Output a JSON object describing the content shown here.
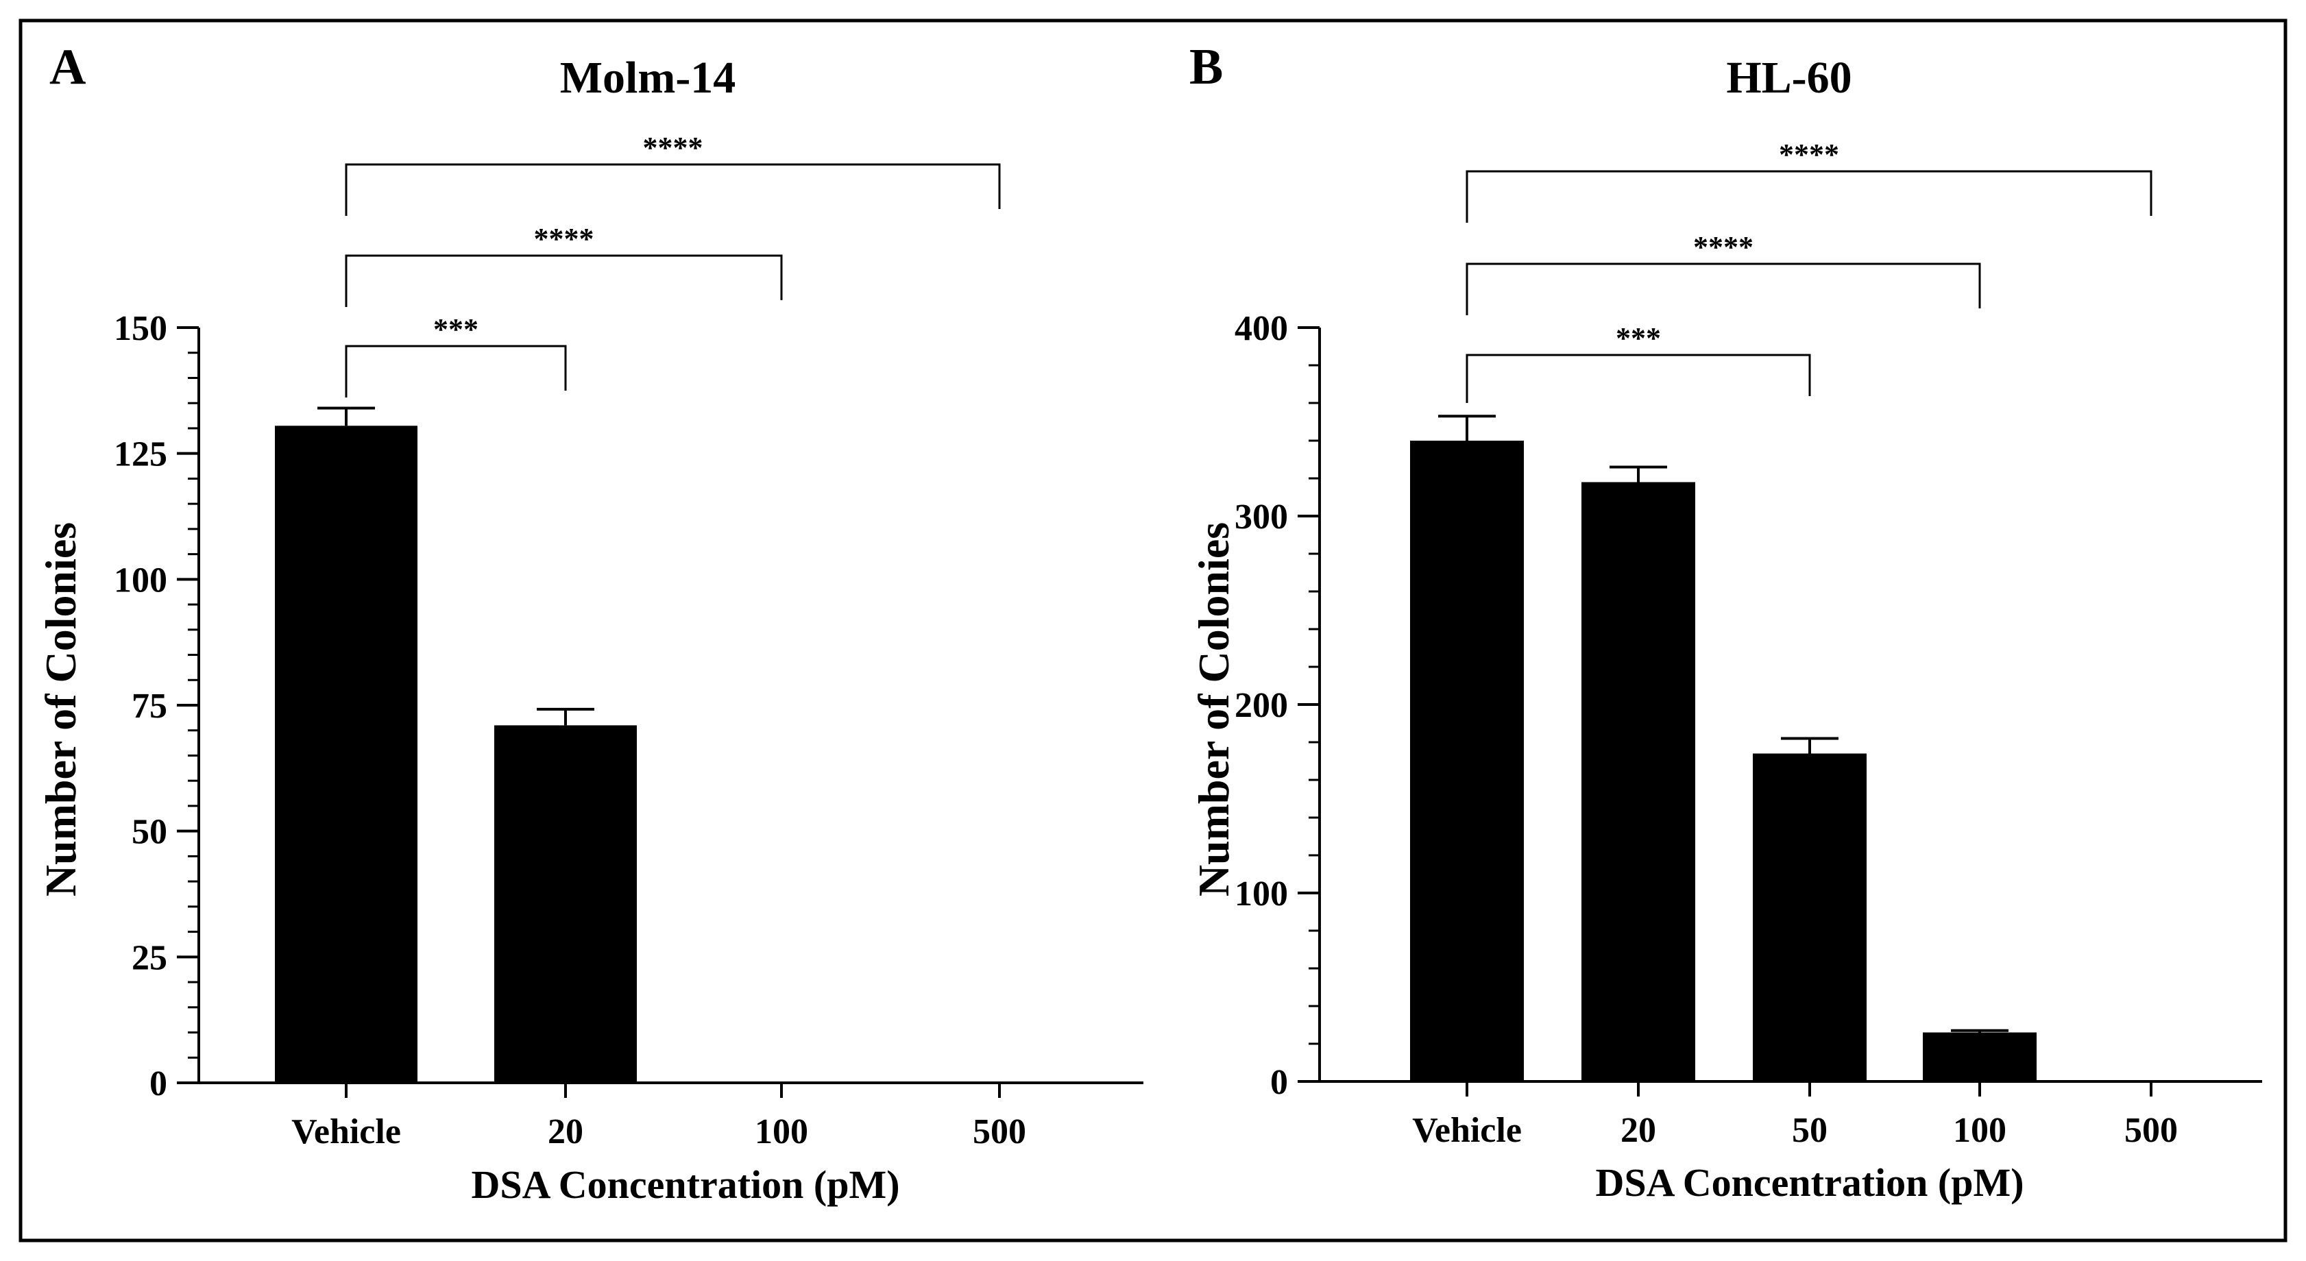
{
  "chart_data": [
    {
      "panel": "A",
      "type": "bar",
      "title": "Molm-14",
      "xlabel": "DSA Concentration (pM)",
      "ylabel": "Number of Colonies",
      "categories": [
        "Vehicle",
        "20",
        "100",
        "500"
      ],
      "values": [
        130.5,
        71,
        0,
        0
      ],
      "errors": [
        3.5,
        3.2,
        0,
        0
      ],
      "ylim": [
        0,
        150
      ],
      "yticks": [
        0,
        25,
        50,
        75,
        100,
        125,
        150
      ],
      "yticklabels": [
        "0",
        "25",
        "50",
        "75",
        "100",
        "125",
        "150"
      ],
      "significance": [
        {
          "from": "Vehicle",
          "to": "20",
          "label": "***"
        },
        {
          "from": "Vehicle",
          "to": "100",
          "label": "****"
        },
        {
          "from": "Vehicle",
          "to": "500",
          "label": "****"
        }
      ]
    },
    {
      "panel": "B",
      "type": "bar",
      "title": "HL-60",
      "xlabel": "DSA Concentration (pM)",
      "ylabel": "Number of Colonies",
      "categories": [
        "Vehicle",
        "20",
        "50",
        "100",
        "500"
      ],
      "values": [
        340,
        318,
        174,
        26,
        0
      ],
      "errors": [
        13,
        8,
        8,
        1,
        0
      ],
      "ylim": [
        0,
        400
      ],
      "yticks": [
        0,
        100,
        200,
        300,
        400
      ],
      "yticklabels": [
        "0",
        "100",
        "200",
        "300",
        "400"
      ],
      "significance": [
        {
          "from": "Vehicle",
          "to": "50",
          "label": "***"
        },
        {
          "from": "Vehicle",
          "to": "100",
          "label": "****"
        },
        {
          "from": "Vehicle",
          "to": "500",
          "label": "****"
        }
      ]
    }
  ]
}
